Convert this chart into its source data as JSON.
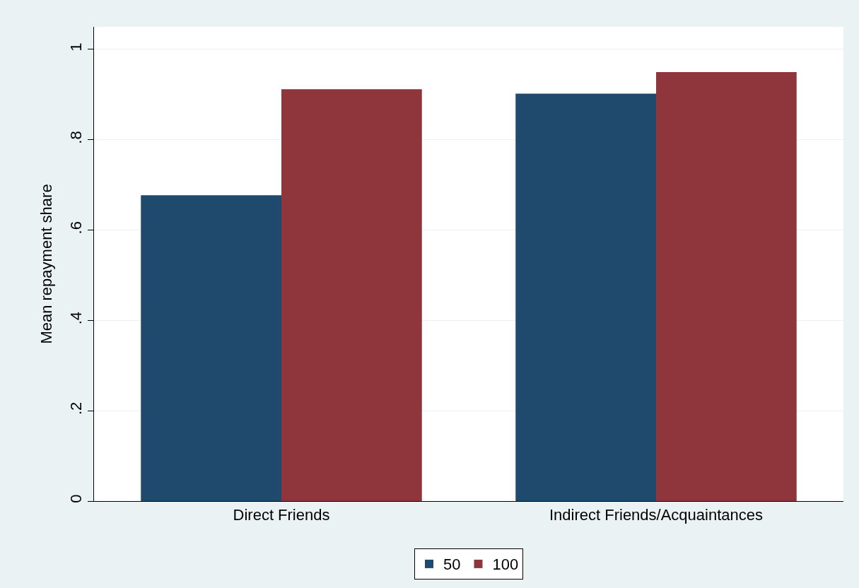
{
  "chart_data": {
    "type": "bar",
    "ylabel": "Mean repayment share",
    "categories": [
      "Direct Friends",
      "Indirect Friends/Acquaintances"
    ],
    "series": [
      {
        "name": "50",
        "color": "#1f4a6e",
        "values": [
          0.677,
          0.902
        ]
      },
      {
        "name": "100",
        "color": "#8f353c",
        "values": [
          0.912,
          0.95
        ]
      }
    ],
    "ylim": [
      0,
      1.05
    ],
    "yticks": [
      {
        "value": 0,
        "label": "0"
      },
      {
        "value": 0.2,
        "label": ".2"
      },
      {
        "value": 0.4,
        "label": ".4"
      },
      {
        "value": 0.6,
        "label": ".6"
      },
      {
        "value": 0.8,
        "label": ".8"
      },
      {
        "value": 1,
        "label": "1"
      }
    ],
    "grid": "y",
    "legend": "bottom"
  }
}
